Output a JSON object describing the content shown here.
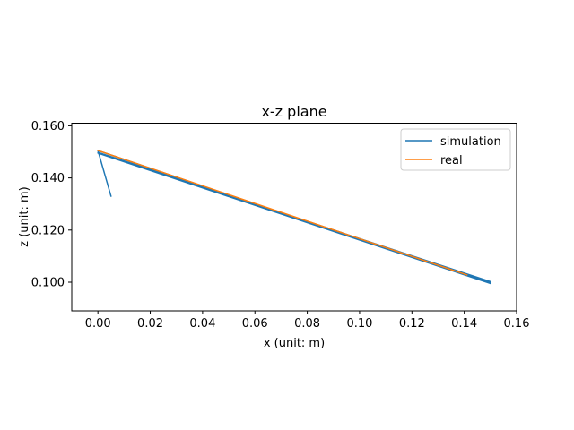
{
  "chart_data": {
    "type": "line",
    "title": "x-z plane",
    "xlabel": "x (unit: m)",
    "ylabel": "z (unit: m)",
    "xlim": [
      -0.01,
      0.16
    ],
    "ylim": [
      0.089,
      0.161
    ],
    "xticks": [
      0.0,
      0.02,
      0.04,
      0.06,
      0.08,
      0.1,
      0.12,
      0.14,
      0.16
    ],
    "yticks": [
      0.1,
      0.12,
      0.14,
      0.16
    ],
    "xtick_labels": [
      "0.00",
      "0.02",
      "0.04",
      "0.06",
      "0.08",
      "0.10",
      "0.12",
      "0.14",
      "0.16"
    ],
    "ytick_labels": [
      "0.100",
      "0.120",
      "0.140",
      "0.160"
    ],
    "legend_position": "top-right",
    "grid": false,
    "series": [
      {
        "name": "simulation",
        "color": "#1f77b4",
        "x": [
          0.005,
          0.0,
          0.15,
          0.0,
          0.15,
          0.0,
          0.15
        ],
        "y": [
          0.133,
          0.1505,
          0.0995,
          0.1495,
          0.0998,
          0.1498,
          0.1002
        ]
      },
      {
        "name": "real",
        "color": "#ff7f0e",
        "x": [
          0.0,
          0.141
        ],
        "y": [
          0.1505,
          0.1028
        ]
      }
    ]
  }
}
